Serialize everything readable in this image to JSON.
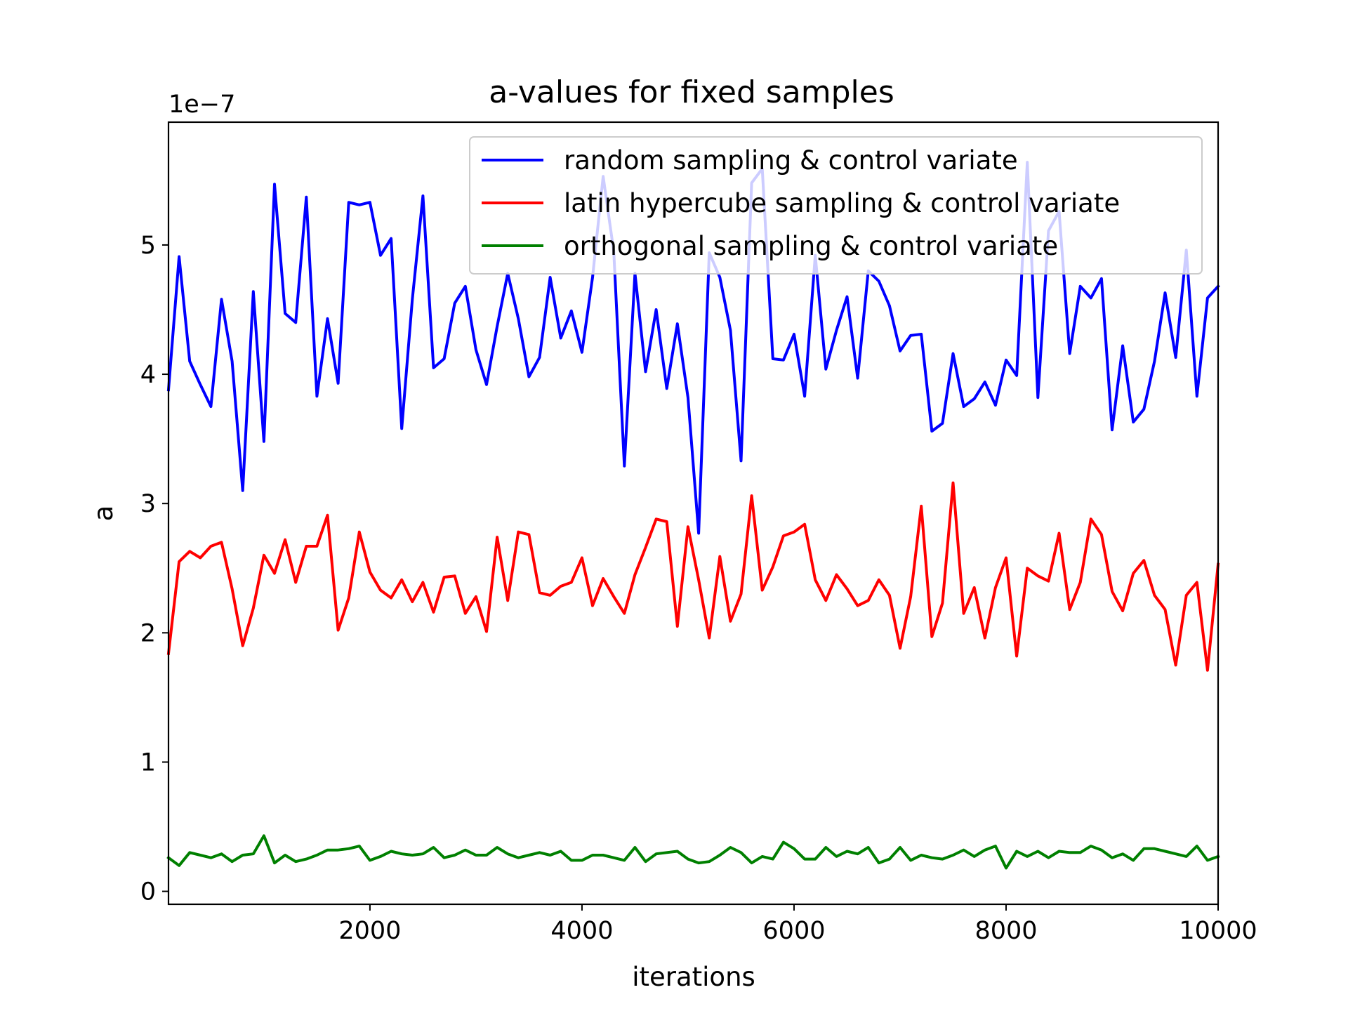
{
  "chart_data": {
    "type": "line",
    "title": "a-values for fixed samples",
    "xlabel": "iterations",
    "ylabel": "a",
    "y_offset_label": "1e−7",
    "xlim": [
      100,
      10000
    ],
    "ylim": [
      -0.1,
      5.95
    ],
    "x_ticks": [
      2000,
      4000,
      6000,
      8000,
      10000
    ],
    "x_tick_labels": [
      "2000",
      "4000",
      "6000",
      "8000",
      "10000"
    ],
    "y_ticks": [
      0,
      1,
      2,
      3,
      4,
      5
    ],
    "y_tick_labels": [
      "0",
      "1",
      "2",
      "3",
      "4",
      "5"
    ],
    "grid": false,
    "legend_position": "upper-right",
    "x": [
      100,
      200,
      300,
      400,
      500,
      600,
      700,
      800,
      900,
      1000,
      1100,
      1200,
      1300,
      1400,
      1500,
      1600,
      1700,
      1800,
      1900,
      2000,
      2100,
      2200,
      2300,
      2400,
      2500,
      2600,
      2700,
      2800,
      2900,
      3000,
      3100,
      3200,
      3300,
      3400,
      3500,
      3600,
      3700,
      3800,
      3900,
      4000,
      4100,
      4200,
      4300,
      4400,
      4500,
      4600,
      4700,
      4800,
      4900,
      5000,
      5100,
      5200,
      5300,
      5400,
      5500,
      5600,
      5700,
      5800,
      5900,
      6000,
      6100,
      6200,
      6300,
      6400,
      6500,
      6600,
      6700,
      6800,
      6900,
      7000,
      7100,
      7200,
      7300,
      7400,
      7500,
      7600,
      7700,
      7800,
      7900,
      8000,
      8100,
      8200,
      8300,
      8400,
      8500,
      8600,
      8700,
      8800,
      8900,
      9000,
      9100,
      9200,
      9300,
      9400,
      9500,
      9600,
      9700,
      9800,
      9900,
      10000
    ],
    "series": [
      {
        "name": "random sampling & control variate",
        "color": "#0000ff",
        "values": [
          3.88,
          4.91,
          4.1,
          3.92,
          3.75,
          4.58,
          4.1,
          3.1,
          4.64,
          3.48,
          5.47,
          4.47,
          4.4,
          5.37,
          3.83,
          4.43,
          3.93,
          5.33,
          5.31,
          5.33,
          4.92,
          5.05,
          3.58,
          4.58,
          5.38,
          4.05,
          4.12,
          4.55,
          4.68,
          4.19,
          3.92,
          4.37,
          4.78,
          4.43,
          3.98,
          4.13,
          4.75,
          4.28,
          4.49,
          4.17,
          4.75,
          5.53,
          4.95,
          3.29,
          4.78,
          4.02,
          4.5,
          3.89,
          4.39,
          3.82,
          2.77,
          4.94,
          4.75,
          4.34,
          3.33,
          5.48,
          5.59,
          4.12,
          4.11,
          4.31,
          3.83,
          4.92,
          4.04,
          4.34,
          4.6,
          3.97,
          4.8,
          4.72,
          4.53,
          4.18,
          4.3,
          4.31,
          3.56,
          3.62,
          4.16,
          3.75,
          3.81,
          3.94,
          3.76,
          4.11,
          3.99,
          5.64,
          3.82,
          5.11,
          5.26,
          4.16,
          4.68,
          4.59,
          4.74,
          3.57,
          4.22,
          3.63,
          3.73,
          4.1,
          4.63,
          4.13,
          4.96,
          3.83,
          4.59,
          4.68
        ]
      },
      {
        "name": "latin hypercube sampling & control variate",
        "color": "#ff0000",
        "values": [
          1.84,
          2.55,
          2.63,
          2.58,
          2.67,
          2.7,
          2.34,
          1.9,
          2.19,
          2.6,
          2.46,
          2.72,
          2.39,
          2.67,
          2.67,
          2.91,
          2.02,
          2.27,
          2.78,
          2.47,
          2.33,
          2.27,
          2.41,
          2.24,
          2.39,
          2.16,
          2.43,
          2.44,
          2.15,
          2.28,
          2.01,
          2.74,
          2.25,
          2.78,
          2.76,
          2.31,
          2.29,
          2.36,
          2.39,
          2.58,
          2.21,
          2.42,
          2.28,
          2.15,
          2.45,
          2.66,
          2.88,
          2.86,
          2.05,
          2.82,
          2.41,
          1.96,
          2.59,
          2.09,
          2.3,
          3.06,
          2.33,
          2.51,
          2.75,
          2.78,
          2.84,
          2.41,
          2.25,
          2.45,
          2.34,
          2.21,
          2.25,
          2.41,
          2.29,
          1.88,
          2.28,
          2.98,
          1.97,
          2.23,
          3.16,
          2.15,
          2.35,
          1.96,
          2.35,
          2.58,
          1.82,
          2.5,
          2.44,
          2.4,
          2.77,
          2.18,
          2.39,
          2.88,
          2.76,
          2.32,
          2.17,
          2.46,
          2.56,
          2.29,
          2.18,
          1.75,
          2.29,
          2.39,
          1.71,
          2.53
        ]
      },
      {
        "name": "orthogonal sampling & control variate",
        "color": "#008000",
        "values": [
          0.26,
          0.2,
          0.3,
          0.28,
          0.26,
          0.29,
          0.23,
          0.28,
          0.29,
          0.43,
          0.22,
          0.28,
          0.23,
          0.25,
          0.28,
          0.32,
          0.32,
          0.33,
          0.35,
          0.24,
          0.27,
          0.31,
          0.29,
          0.28,
          0.29,
          0.34,
          0.26,
          0.28,
          0.32,
          0.28,
          0.28,
          0.34,
          0.29,
          0.26,
          0.28,
          0.3,
          0.28,
          0.31,
          0.24,
          0.24,
          0.28,
          0.28,
          0.26,
          0.24,
          0.34,
          0.23,
          0.29,
          0.3,
          0.31,
          0.25,
          0.22,
          0.23,
          0.28,
          0.34,
          0.3,
          0.22,
          0.27,
          0.25,
          0.38,
          0.33,
          0.25,
          0.25,
          0.34,
          0.27,
          0.31,
          0.29,
          0.34,
          0.22,
          0.25,
          0.34,
          0.24,
          0.28,
          0.26,
          0.25,
          0.28,
          0.32,
          0.27,
          0.32,
          0.35,
          0.18,
          0.31,
          0.27,
          0.31,
          0.26,
          0.31,
          0.3,
          0.3,
          0.35,
          0.32,
          0.26,
          0.29,
          0.24,
          0.33,
          0.33,
          0.31,
          0.29,
          0.27,
          0.35,
          0.24,
          0.27
        ]
      }
    ]
  }
}
